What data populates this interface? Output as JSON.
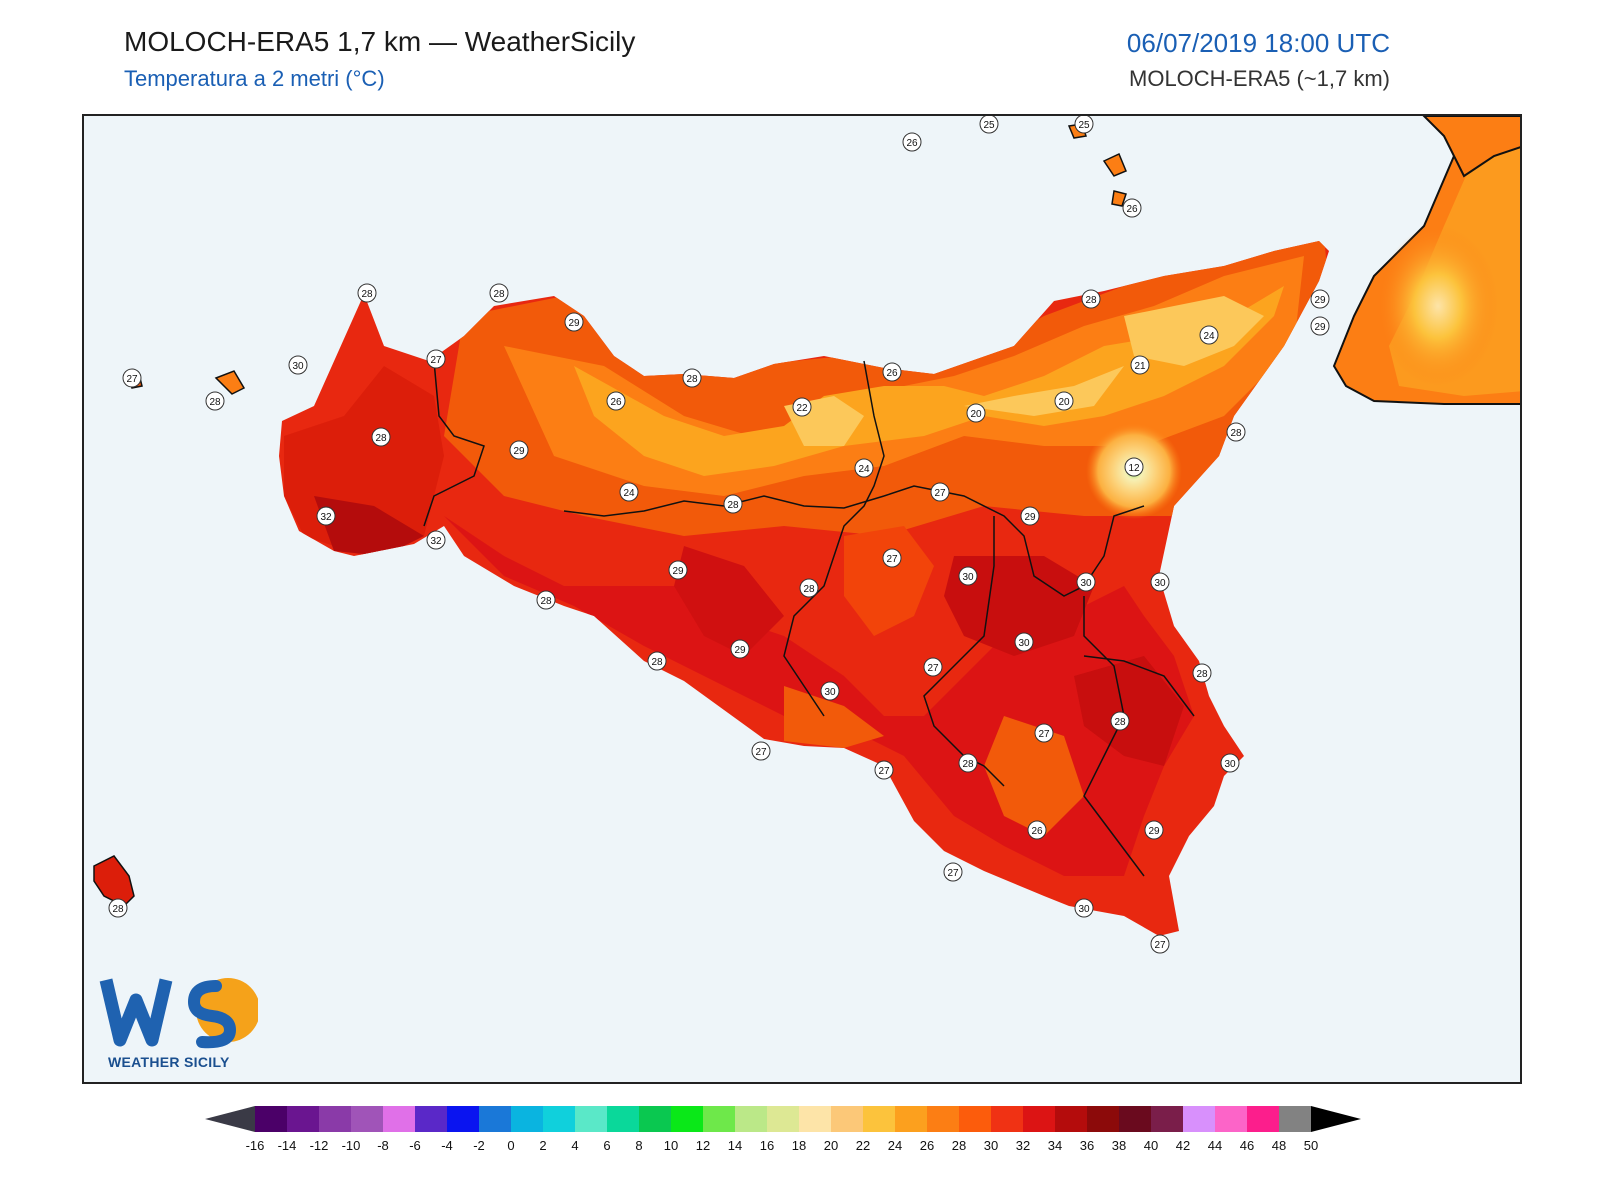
{
  "header": {
    "title": "MOLOCH-ERA5 1,7 km — WeatherSicily",
    "subtitle": "Temperatura a 2 metri (°C)",
    "datetime": "06/07/2019 18:00 UTC",
    "model": "MOLOCH-ERA5 (~1,7 km)"
  },
  "logo": {
    "text": "WEATHER SICILY",
    "letters": "WS"
  },
  "colors": {
    "sea": "#eef5f9",
    "hot": "#d81e05",
    "warm": "#f05a0a",
    "cool": "#fa9b1c",
    "mild": "#fcc35a",
    "deep": "#b40c0c"
  },
  "station_labels": [
    {
      "id": "lipari-n",
      "value": "25"
    },
    {
      "id": "stromboli",
      "value": "25"
    },
    {
      "id": "alicudi",
      "value": "26"
    },
    {
      "id": "vulcano",
      "value": "26"
    },
    {
      "id": "san-vito",
      "value": "28"
    },
    {
      "id": "capo-gallo",
      "value": "28"
    },
    {
      "id": "palermo",
      "value": "29"
    },
    {
      "id": "egadi",
      "value": "27"
    },
    {
      "id": "marettimo",
      "value": "28"
    },
    {
      "id": "trapani",
      "value": "30"
    },
    {
      "id": "alcamo",
      "value": "27"
    },
    {
      "id": "marsala",
      "value": "28"
    },
    {
      "id": "corleone",
      "value": "29"
    },
    {
      "id": "mazara",
      "value": "32"
    },
    {
      "id": "selinunte",
      "value": "32"
    },
    {
      "id": "termini",
      "value": "26"
    },
    {
      "id": "cefalu",
      "value": "28"
    },
    {
      "id": "madonie",
      "value": "22"
    },
    {
      "id": "nebrodi-w",
      "value": "26"
    },
    {
      "id": "capo-orlando",
      "value": "28"
    },
    {
      "id": "milazzo",
      "value": "29"
    },
    {
      "id": "nebrodi-e",
      "value": "24"
    },
    {
      "id": "peloritani",
      "value": "21"
    },
    {
      "id": "nebrodi-c",
      "value": "20"
    },
    {
      "id": "randazzo",
      "value": "20"
    },
    {
      "id": "taormina",
      "value": "28"
    },
    {
      "id": "etna",
      "value": "12"
    },
    {
      "id": "lercara",
      "value": "24"
    },
    {
      "id": "caltanissetta-n",
      "value": "24"
    },
    {
      "id": "cammarata",
      "value": "28"
    },
    {
      "id": "enna",
      "value": "27"
    },
    {
      "id": "leonforte",
      "value": "29"
    },
    {
      "id": "bivona",
      "value": "29"
    },
    {
      "id": "caltanissetta",
      "value": "28"
    },
    {
      "id": "valguarnera",
      "value": "27"
    },
    {
      "id": "adrano",
      "value": "30"
    },
    {
      "id": "paterno",
      "value": "30"
    },
    {
      "id": "catania",
      "value": "30"
    },
    {
      "id": "sciacca",
      "value": "28"
    },
    {
      "id": "ribera",
      "value": "28"
    },
    {
      "id": "canicatti",
      "value": "29"
    },
    {
      "id": "piazza",
      "value": "30"
    },
    {
      "id": "caltagirone",
      "value": "27"
    },
    {
      "id": "augusta",
      "value": "28"
    },
    {
      "id": "licata-n",
      "value": "30"
    },
    {
      "id": "vizzini",
      "value": "27"
    },
    {
      "id": "lentini",
      "value": "28"
    },
    {
      "id": "agrigento",
      "value": "27"
    },
    {
      "id": "licata",
      "value": "27"
    },
    {
      "id": "niscemi",
      "value": "28"
    },
    {
      "id": "siracusa",
      "value": "30"
    },
    {
      "id": "ragusa",
      "value": "26"
    },
    {
      "id": "noto",
      "value": "29"
    },
    {
      "id": "scoglitti",
      "value": "27"
    },
    {
      "id": "pozzallo",
      "value": "30"
    },
    {
      "id": "pachino",
      "value": "27"
    },
    {
      "id": "pantelleria",
      "value": "28"
    },
    {
      "id": "calabria",
      "value": "29"
    }
  ],
  "colorbar": {
    "ticks": [
      "-16",
      "-14",
      "-12",
      "-10",
      "-8",
      "-6",
      "-4",
      "-2",
      "0",
      "2",
      "4",
      "6",
      "8",
      "10",
      "12",
      "14",
      "16",
      "18",
      "20",
      "22",
      "24",
      "26",
      "28",
      "30",
      "32",
      "34",
      "36",
      "38",
      "40",
      "42",
      "44",
      "46",
      "48",
      "50"
    ],
    "colors": [
      "#3a0046",
      "#4b0068",
      "#6a1590",
      "#8a3aa8",
      "#a054b8",
      "#e070e8",
      "#5a28c8",
      "#0a14f0",
      "#1a78d8",
      "#0ab4e0",
      "#10d0dc",
      "#5ae8c8",
      "#0ad89a",
      "#0ac850",
      "#0ae818",
      "#6ee84a",
      "#bbe888",
      "#dde894",
      "#fde4a8",
      "#fcc878",
      "#fcc33c",
      "#fca01e",
      "#fc7e14",
      "#fc5c0c",
      "#f03214",
      "#dc1414",
      "#b40c0c",
      "#8c0a0a",
      "#6a0a1e",
      "#7a1e4a",
      "#d890fc",
      "#fc64c8",
      "#fc1e8c",
      "#828282",
      "#3c3c3c"
    ]
  }
}
